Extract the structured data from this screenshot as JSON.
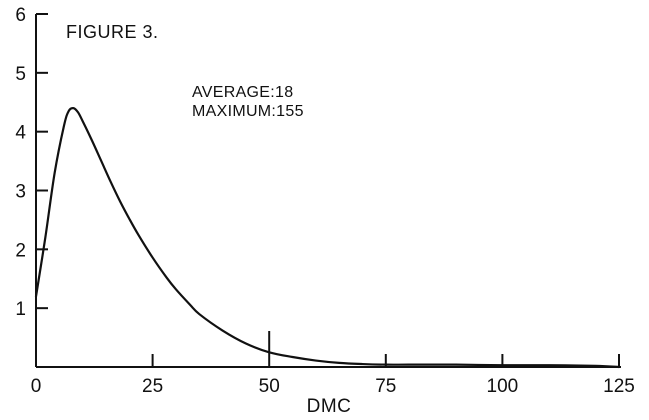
{
  "chart_data": {
    "type": "line",
    "title": "FIGURE 3.",
    "xlabel": "DMC",
    "ylabel": "",
    "xlim": [
      0,
      125
    ],
    "ylim": [
      0,
      6
    ],
    "x_ticks": [
      0,
      25,
      50,
      75,
      100,
      125
    ],
    "y_ticks": [
      1,
      2,
      3,
      4,
      5,
      6
    ],
    "grid": false,
    "annotations": [
      "AVERAGE:18",
      "MAXIMUM:155"
    ],
    "series": [
      {
        "color": "#111111",
        "x": [
          0,
          2,
          4,
          6,
          7,
          8,
          9,
          10,
          12,
          14,
          16,
          18,
          20,
          22,
          25,
          28,
          30,
          33,
          35,
          40,
          45,
          50,
          55,
          60,
          65,
          70,
          75,
          80,
          90,
          100,
          110,
          120,
          125
        ],
        "y": [
          1.2,
          2.2,
          3.3,
          4.1,
          4.35,
          4.4,
          4.33,
          4.18,
          3.85,
          3.5,
          3.15,
          2.82,
          2.52,
          2.24,
          1.86,
          1.52,
          1.32,
          1.06,
          0.9,
          0.62,
          0.4,
          0.25,
          0.17,
          0.11,
          0.07,
          0.05,
          0.04,
          0.04,
          0.04,
          0.03,
          0.03,
          0.02,
          0.0
        ]
      }
    ]
  }
}
